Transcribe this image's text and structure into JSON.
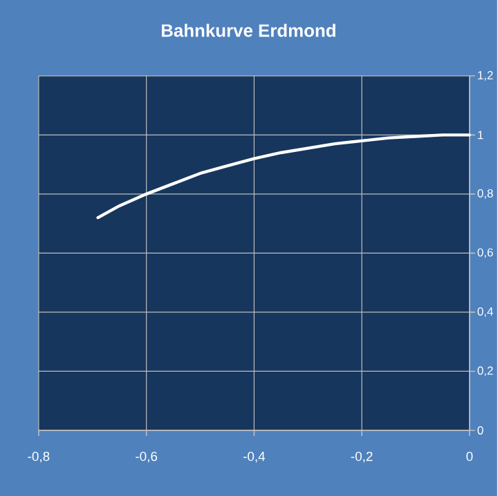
{
  "chart_data": {
    "type": "line",
    "title": "Bahnkurve Erdmond",
    "x": [
      -0.69,
      -0.65,
      -0.6,
      -0.55,
      -0.5,
      -0.45,
      -0.4,
      -0.35,
      -0.3,
      -0.25,
      -0.2,
      -0.15,
      -0.1,
      -0.05,
      0
    ],
    "series": [
      {
        "color": "#ffffff",
        "values": [
          0.72,
          0.76,
          0.8,
          0.835,
          0.87,
          0.895,
          0.92,
          0.94,
          0.955,
          0.97,
          0.98,
          0.99,
          0.995,
          1.0,
          1.0
        ]
      }
    ],
    "xlim": [
      -0.8,
      0
    ],
    "ylim": [
      0,
      1.2
    ],
    "xticks": [
      {
        "value": -0.8,
        "label": "-0,8"
      },
      {
        "value": -0.6,
        "label": "-0,6"
      },
      {
        "value": -0.4,
        "label": "-0,4"
      },
      {
        "value": -0.2,
        "label": "-0,2"
      },
      0
    ],
    "yticks": [
      0,
      {
        "value": 0.2,
        "label": "0,2"
      },
      {
        "value": 0.4,
        "label": "0,4"
      },
      {
        "value": 0.6,
        "label": "0,6"
      },
      {
        "value": 0.8,
        "label": "0,8"
      },
      1,
      {
        "value": 1.2,
        "label": "1,2"
      }
    ],
    "grid": true
  }
}
